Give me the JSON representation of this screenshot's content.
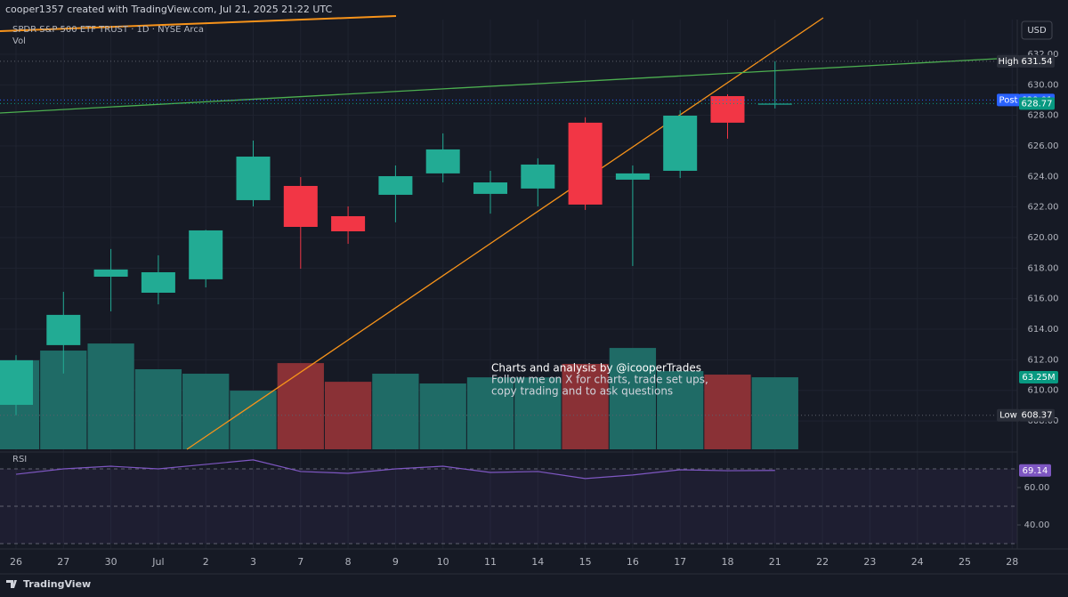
{
  "header": {
    "credit": "cooper1357 created with TradingView.com, Jul 21, 2025 21:22 UTC",
    "currency": "USD",
    "footer": "TradingView"
  },
  "chart_data": {
    "type": "candlestick",
    "title": "SPDR S&P 500 ETF TRUST · 1D · NYSE Arca",
    "subtitle": "Vol",
    "categories": [
      "26",
      "27",
      "30",
      "Jul",
      "2",
      "3",
      "7",
      "8",
      "9",
      "10",
      "11",
      "14",
      "15",
      "16",
      "17",
      "18",
      "21",
      "22",
      "23",
      "24",
      "25",
      "28"
    ],
    "open": [
      609.05,
      612.96,
      617.44,
      616.39,
      617.27,
      622.45,
      623.38,
      621.4,
      622.8,
      624.2,
      622.86,
      623.21,
      627.52,
      623.79,
      624.37,
      629.26,
      628.7,
      null,
      null,
      null,
      null,
      null
    ],
    "high": [
      612.3,
      616.45,
      619.25,
      618.84,
      620.5,
      626.35,
      623.96,
      622.04,
      624.72,
      626.82,
      624.37,
      625.19,
      627.87,
      624.72,
      628.33,
      629.38,
      631.54,
      null,
      null,
      null,
      null,
      null
    ],
    "low": [
      608.37,
      611.1,
      615.17,
      615.63,
      616.74,
      622.04,
      617.96,
      619.59,
      621.0,
      623.61,
      621.57,
      622.04,
      621.81,
      618.14,
      623.9,
      626.47,
      628.45,
      null,
      null,
      null,
      null,
      null
    ],
    "close": [
      611.97,
      614.94,
      617.91,
      617.73,
      620.47,
      625.3,
      620.7,
      620.41,
      624.02,
      625.77,
      623.61,
      624.78,
      622.16,
      624.2,
      627.98,
      627.52,
      628.77,
      null,
      null,
      null,
      null,
      null
    ],
    "up_color": "#22ab94",
    "down_color": "#f23645",
    "ylim": [
      606.14,
      634.27
    ],
    "yticks": [
      {
        "value": 608,
        "label": "608.00"
      },
      {
        "value": 610,
        "label": "610.00"
      },
      {
        "value": 612,
        "label": "612.00"
      },
      {
        "value": 614,
        "label": "614.00"
      },
      {
        "value": 616,
        "label": "616.00"
      },
      {
        "value": 618,
        "label": "618.00"
      },
      {
        "value": 620,
        "label": "620.00"
      },
      {
        "value": 622,
        "label": "622.00"
      },
      {
        "value": 624,
        "label": "624.00"
      },
      {
        "value": 626,
        "label": "626.00"
      },
      {
        "value": 628,
        "label": "628.00"
      },
      {
        "value": 630,
        "label": "630.00"
      },
      {
        "value": 632,
        "label": "632.00"
      }
    ],
    "grid": true,
    "markers": [
      {
        "label": "High",
        "value": 631.54,
        "color": "#2a2e39"
      },
      {
        "label": "Post",
        "value": 629.01,
        "color": "#2962ff"
      },
      {
        "value": 628.77,
        "color": "#089981"
      },
      {
        "label": "Low",
        "value": 608.37,
        "color": "#2a2e39"
      }
    ],
    "volume": {
      "values": [
        78.1,
        86.7,
        92.9,
        70.3,
        66.4,
        51.5,
        75.7,
        59.3,
        66.4,
        57.8,
        63.2,
        63.2,
        75.0,
        89.0,
        68.7,
        65.6,
        63.25,
        null,
        null,
        null,
        null,
        null
      ],
      "value_labels": [
        null,
        null,
        null,
        null,
        null,
        null,
        null,
        null,
        null,
        null,
        null,
        null,
        null,
        null,
        null,
        null,
        "63.25M",
        null,
        null,
        null,
        null,
        null
      ],
      "ylim": [
        0,
        300
      ],
      "up_color": "#1f6b66",
      "down_color": "#8a3136",
      "label_color": "#089981"
    },
    "rsi": {
      "title": "RSI",
      "values": [
        67.1,
        70.0,
        71.4,
        70.0,
        72.4,
        74.8,
        68.6,
        67.6,
        70.0,
        71.4,
        68.1,
        68.6,
        64.8,
        66.7,
        69.5,
        69.0,
        69.14,
        null,
        null,
        null,
        null,
        null
      ],
      "ylim": [
        28.1,
        75.7
      ],
      "yticks": [
        {
          "value": 40,
          "label": "40.00"
        },
        {
          "value": 60,
          "label": "60.00"
        }
      ],
      "levels": [
        30,
        50,
        70
      ],
      "color": "#7e57c2"
    },
    "annotation": [
      "Charts and analysis by @icooperTrades",
      "Follow me on X for charts, trade set ups,",
      "copy trading and to ask questions"
    ]
  }
}
